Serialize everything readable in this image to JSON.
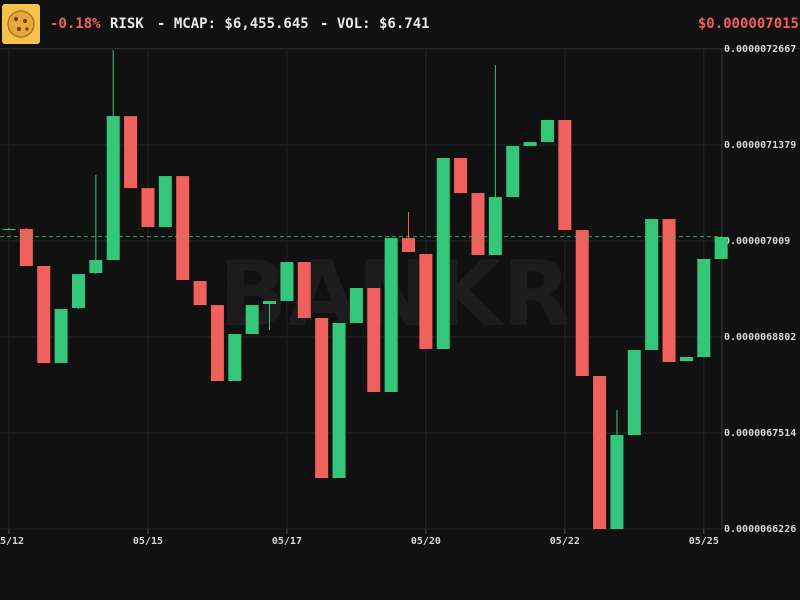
{
  "header": {
    "change": "-0.18%",
    "symbol": "RISK",
    "mcap": "- MCAP: $6,455.645",
    "vol": "- VOL: $6.741",
    "price": "$0.000007015"
  },
  "chart_data": {
    "type": "candlestick",
    "watermark": "BANKR",
    "categories": [
      "05/12",
      null,
      null,
      null,
      null,
      null,
      null,
      null,
      "05/15",
      null,
      null,
      null,
      null,
      null,
      null,
      null,
      "05/17",
      null,
      null,
      null,
      null,
      null,
      null,
      null,
      "05/20",
      null,
      null,
      null,
      null,
      null,
      null,
      null,
      "05/22",
      null,
      null,
      null,
      null,
      null,
      null,
      null,
      "05/25",
      null
    ],
    "series": [
      {
        "open": [
          7.0251e-06,
          7.0251e-06,
          6.9755e-06,
          6.8453e-06,
          6.9191e-06,
          6.9661e-06,
          6.9835e-06,
          7.1767e-06,
          7.0801e-06,
          7.0278e-06,
          7.0962e-06,
          6.9553e-06,
          6.9231e-06,
          6.8212e-06,
          6.8842e-06,
          6.9245e-06,
          6.9285e-06,
          6.9808e-06,
          6.9057e-06,
          6.691e-06,
          6.899e-06,
          6.946e-06,
          6.8064e-06,
          7.013e-06,
          6.9916e-06,
          6.8641e-06,
          7.1204e-06,
          7.0734e-06,
          6.9902e-06,
          7.068e-06,
          7.1365e-06,
          7.1418e-06,
          7.1714e-06,
          7.0238e-06,
          6.8279e-06,
          6.6226e-06,
          6.7487e-06,
          6.8628e-06,
          7.0385e-06,
          6.848e-06,
          6.8534e-06,
          6.9849e-06
        ],
        "high": [
          7.0265e-06,
          7.0265e-06,
          6.9755e-06,
          6.9178e-06,
          6.9647e-06,
          7.0976e-06,
          7.2653e-06,
          7.1767e-06,
          7.0801e-06,
          7.0962e-06,
          7.0962e-06,
          6.9553e-06,
          6.9231e-06,
          6.8842e-06,
          6.9231e-06,
          6.9285e-06,
          6.9808e-06,
          6.9808e-06,
          6.9057e-06,
          6.899e-06,
          6.946e-06,
          6.946e-06,
          7.013e-06,
          7.0479e-06,
          6.9916e-06,
          7.1204e-06,
          7.1204e-06,
          7.0734e-06,
          7.2451e-06,
          7.1365e-06,
          7.1418e-06,
          7.1714e-06,
          7.1714e-06,
          7.0238e-06,
          6.8279e-06,
          6.7823e-06,
          6.8628e-06,
          7.0385e-06,
          7.0385e-06,
          6.8534e-06,
          6.9849e-06,
          7.0144e-06
        ],
        "low": [
          7.0238e-06,
          6.9755e-06,
          6.8453e-06,
          6.8453e-06,
          6.9178e-06,
          6.9647e-06,
          6.9835e-06,
          7.0801e-06,
          7.0278e-06,
          7.0278e-06,
          6.9567e-06,
          6.9231e-06,
          6.8212e-06,
          6.8212e-06,
          6.8842e-06,
          6.8896e-06,
          6.9285e-06,
          6.9057e-06,
          6.691e-06,
          6.691e-06,
          6.899e-06,
          6.8064e-06,
          6.8064e-06,
          6.9943e-06,
          6.8641e-06,
          6.8641e-06,
          7.0734e-06,
          6.9902e-06,
          6.9902e-06,
          7.068e-06,
          7.1365e-06,
          7.1418e-06,
          7.0238e-06,
          6.8279e-06,
          6.6226e-06,
          6.6226e-06,
          6.7487e-06,
          6.8628e-06,
          6.8467e-06,
          6.848e-06,
          6.8534e-06,
          6.9849e-06
        ],
        "close": [
          7.0251e-06,
          6.9755e-06,
          6.8453e-06,
          6.9178e-06,
          6.9647e-06,
          6.9835e-06,
          7.1767e-06,
          7.0801e-06,
          7.0278e-06,
          7.0962e-06,
          6.9567e-06,
          6.9231e-06,
          6.8212e-06,
          6.8842e-06,
          6.9231e-06,
          6.9285e-06,
          6.9808e-06,
          6.9057e-06,
          6.691e-06,
          6.899e-06,
          6.946e-06,
          6.8064e-06,
          7.013e-06,
          6.9943e-06,
          6.8641e-06,
          7.1204e-06,
          7.0734e-06,
          6.9902e-06,
          7.068e-06,
          7.1365e-06,
          7.1418e-06,
          7.1714e-06,
          7.0238e-06,
          6.8279e-06,
          6.6226e-06,
          6.7487e-06,
          6.8628e-06,
          7.0385e-06,
          6.8467e-06,
          6.8534e-06,
          6.9849e-06,
          7.0144e-06
        ]
      }
    ],
    "up_color": "#34c77b",
    "down_color": "#f0605d",
    "last_price": 7.015e-06,
    "last_price_color": "#34c77b",
    "ylim": [
      6.6226e-06,
      7.2667e-06
    ],
    "yticks": [
      6.6226e-06,
      6.7514e-06,
      6.8802e-06,
      7.009e-06,
      7.1379e-06,
      7.2667e-06
    ],
    "grid": true
  }
}
